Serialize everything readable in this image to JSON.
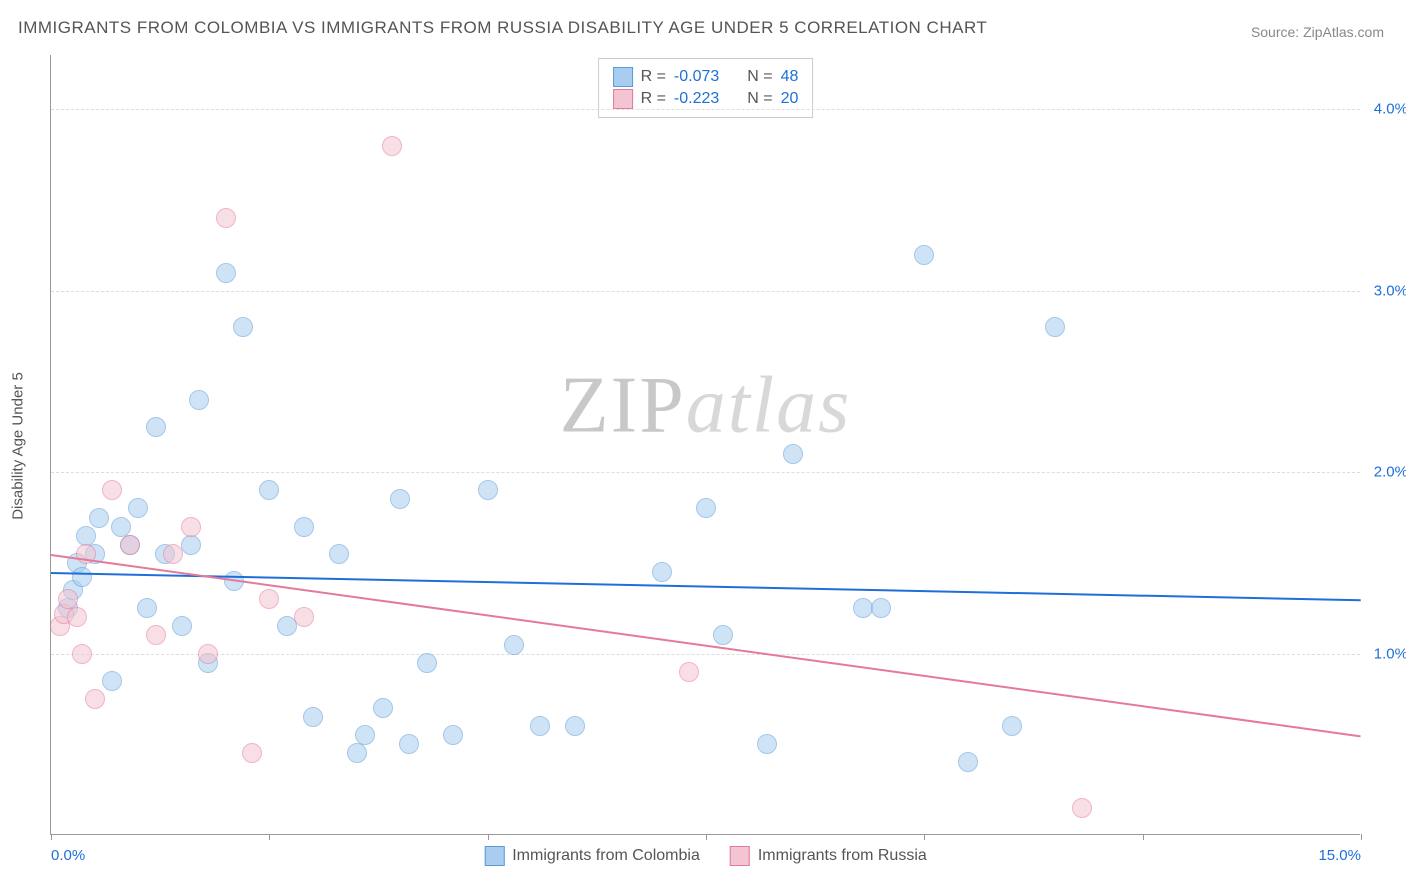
{
  "title": "IMMIGRANTS FROM COLOMBIA VS IMMIGRANTS FROM RUSSIA DISABILITY AGE UNDER 5 CORRELATION CHART",
  "source": "Source: ZipAtlas.com",
  "ylabel": "Disability Age Under 5",
  "watermark": {
    "part1": "ZIP",
    "part2": "atlas"
  },
  "chart": {
    "type": "scatter",
    "background_color": "#ffffff",
    "grid_color": "#dddddd",
    "axis_color": "#999999",
    "label_color": "#555555",
    "tick_label_color": "#1e6fd9",
    "title_fontsize": 17,
    "label_fontsize": 15,
    "xlim": [
      0,
      15
    ],
    "ylim": [
      0,
      4.3
    ],
    "y_gridlines": [
      1.0,
      2.0,
      3.0,
      4.0
    ],
    "y_tick_labels": [
      "1.0%",
      "2.0%",
      "3.0%",
      "4.0%"
    ],
    "x_ticks": [
      0,
      2.5,
      5,
      7.5,
      10,
      12.5,
      15
    ],
    "x_tick_labels": {
      "0": "0.0%",
      "15": "15.0%"
    },
    "marker_radius": 10,
    "marker_opacity": 0.55,
    "series": [
      {
        "name": "Immigrants from Colombia",
        "color_fill": "#a8cdf0",
        "color_stroke": "#5a9bd5",
        "R": "-0.073",
        "N": "48",
        "trend": {
          "x1": 0,
          "y1": 1.45,
          "x2": 15,
          "y2": 1.3,
          "color": "#1e6fd9",
          "width": 2
        },
        "points": [
          [
            0.2,
            1.25
          ],
          [
            0.25,
            1.35
          ],
          [
            0.3,
            1.5
          ],
          [
            0.35,
            1.42
          ],
          [
            0.4,
            1.65
          ],
          [
            0.5,
            1.55
          ],
          [
            0.55,
            1.75
          ],
          [
            0.7,
            0.85
          ],
          [
            0.8,
            1.7
          ],
          [
            0.9,
            1.6
          ],
          [
            1.0,
            1.8
          ],
          [
            1.1,
            1.25
          ],
          [
            1.2,
            2.25
          ],
          [
            1.3,
            1.55
          ],
          [
            1.5,
            1.15
          ],
          [
            1.6,
            1.6
          ],
          [
            1.7,
            2.4
          ],
          [
            1.8,
            0.95
          ],
          [
            2.0,
            3.1
          ],
          [
            2.1,
            1.4
          ],
          [
            2.2,
            2.8
          ],
          [
            2.5,
            1.9
          ],
          [
            2.7,
            1.15
          ],
          [
            2.9,
            1.7
          ],
          [
            3.0,
            0.65
          ],
          [
            3.3,
            1.55
          ],
          [
            3.5,
            0.45
          ],
          [
            3.6,
            0.55
          ],
          [
            3.8,
            0.7
          ],
          [
            4.0,
            1.85
          ],
          [
            4.1,
            0.5
          ],
          [
            4.3,
            0.95
          ],
          [
            4.6,
            0.55
          ],
          [
            5.0,
            1.9
          ],
          [
            5.3,
            1.05
          ],
          [
            5.6,
            0.6
          ],
          [
            6.0,
            0.6
          ],
          [
            7.0,
            1.45
          ],
          [
            7.5,
            1.8
          ],
          [
            7.7,
            1.1
          ],
          [
            8.2,
            0.5
          ],
          [
            8.5,
            2.1
          ],
          [
            9.3,
            1.25
          ],
          [
            9.5,
            1.25
          ],
          [
            10.0,
            3.2
          ],
          [
            10.5,
            0.4
          ],
          [
            11.0,
            0.6
          ],
          [
            11.5,
            2.8
          ]
        ]
      },
      {
        "name": "Immigrants from Russia",
        "color_fill": "#f3c4d1",
        "color_stroke": "#e47a9a",
        "R": "-0.223",
        "N": "20",
        "trend": {
          "x1": 0,
          "y1": 1.55,
          "x2": 15,
          "y2": 0.55,
          "color": "#e47a9a",
          "width": 2
        },
        "points": [
          [
            0.1,
            1.15
          ],
          [
            0.15,
            1.22
          ],
          [
            0.2,
            1.3
          ],
          [
            0.3,
            1.2
          ],
          [
            0.35,
            1.0
          ],
          [
            0.4,
            1.55
          ],
          [
            0.5,
            0.75
          ],
          [
            0.7,
            1.9
          ],
          [
            0.9,
            1.6
          ],
          [
            1.2,
            1.1
          ],
          [
            1.4,
            1.55
          ],
          [
            1.6,
            1.7
          ],
          [
            1.8,
            1.0
          ],
          [
            2.0,
            3.4
          ],
          [
            2.3,
            0.45
          ],
          [
            2.5,
            1.3
          ],
          [
            2.9,
            1.2
          ],
          [
            3.9,
            3.8
          ],
          [
            7.3,
            0.9
          ],
          [
            11.8,
            0.15
          ]
        ]
      }
    ],
    "legend_top": {
      "rows": [
        {
          "swatch_fill": "#a8cdf0",
          "swatch_stroke": "#5a9bd5",
          "r_label": "R =",
          "r_val": "-0.073",
          "n_label": "N =",
          "n_val": "48"
        },
        {
          "swatch_fill": "#f3c4d1",
          "swatch_stroke": "#e47a9a",
          "r_label": "R =",
          "r_val": "-0.223",
          "n_label": "N =",
          "n_val": "20"
        }
      ]
    },
    "legend_bottom": [
      {
        "swatch_fill": "#a8cdf0",
        "swatch_stroke": "#5a9bd5",
        "label": "Immigrants from Colombia"
      },
      {
        "swatch_fill": "#f3c4d1",
        "swatch_stroke": "#e47a9a",
        "label": "Immigrants from Russia"
      }
    ]
  }
}
